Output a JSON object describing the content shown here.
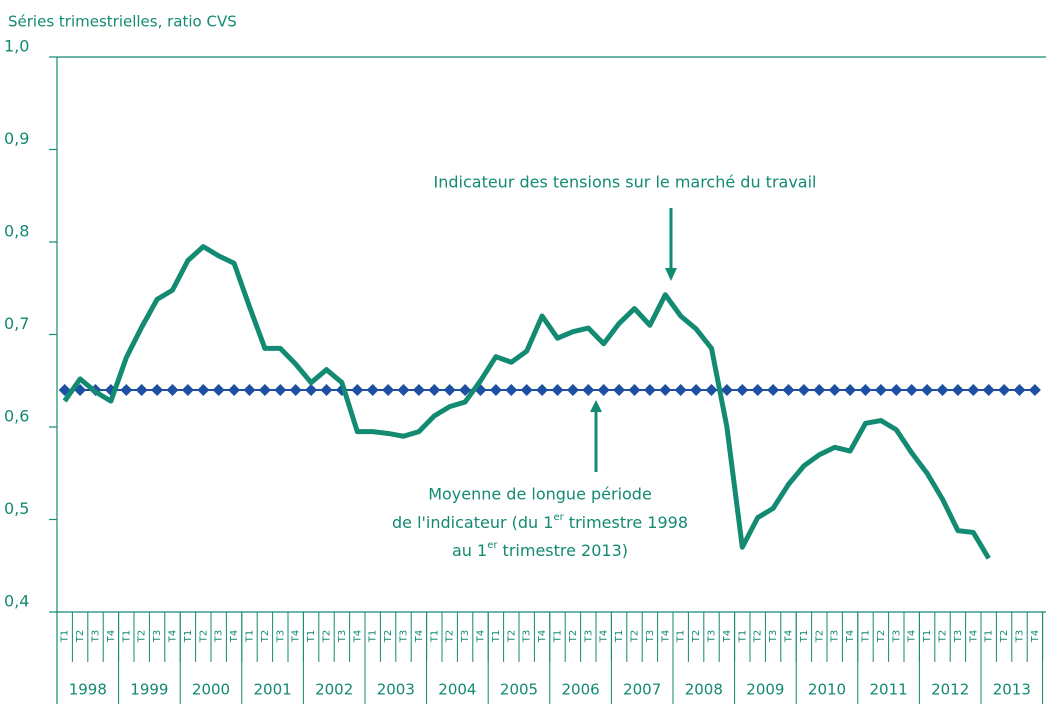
{
  "chart_data": {
    "type": "line",
    "subtitle": "Séries trimestrielles, ratio CVS",
    "categories": [
      "T1",
      "T2",
      "T3",
      "T4",
      "T1",
      "T2",
      "T3",
      "T4",
      "T1",
      "T2",
      "T3",
      "T4",
      "T1",
      "T2",
      "T3",
      "T4",
      "T1",
      "T2",
      "T3",
      "T4",
      "T1",
      "T2",
      "T3",
      "T4",
      "T1",
      "T2",
      "T3",
      "T4",
      "T1",
      "T2",
      "T3",
      "T4",
      "T1",
      "T2",
      "T3",
      "T4",
      "T1",
      "T2",
      "T3",
      "T4",
      "T1",
      "T2",
      "T3",
      "T4",
      "T1",
      "T2",
      "T3",
      "T4",
      "T1",
      "T2",
      "T3",
      "T4",
      "T1",
      "T2",
      "T3",
      "T4",
      "T1",
      "T2",
      "T3",
      "T4",
      "T1",
      "T2",
      "T3",
      "T4"
    ],
    "years": [
      "1998",
      "1999",
      "2000",
      "2001",
      "2002",
      "2003",
      "2004",
      "2005",
      "2006",
      "2007",
      "2008",
      "2009",
      "2010",
      "2011",
      "2012",
      "2013"
    ],
    "series": [
      {
        "color": "#138a72",
        "values": [
          0.628,
          0.652,
          0.638,
          0.628,
          0.675,
          0.708,
          0.738,
          0.748,
          0.78,
          0.795,
          0.785,
          0.777,
          0.73,
          0.685,
          0.685,
          0.668,
          0.648,
          0.662,
          0.648,
          0.595,
          0.595,
          0.593,
          0.59,
          0.595,
          0.612,
          0.622,
          0.627,
          0.65,
          0.676,
          0.67,
          0.682,
          0.72,
          0.696,
          0.703,
          0.707,
          0.69,
          0.712,
          0.728,
          0.71,
          0.743,
          0.72,
          0.706,
          0.685,
          0.6,
          0.47,
          0.502,
          0.512,
          0.538,
          0.558,
          0.57,
          0.578,
          0.574,
          0.604,
          0.607,
          0.597,
          0.572,
          0.55,
          0.522,
          0.488,
          0.486,
          0.458,
          null,
          null,
          null
        ]
      },
      {
        "color": "#1d4fa3",
        "marker": "diamond",
        "values": [
          0.64,
          0.64,
          0.64,
          0.64,
          0.64,
          0.64,
          0.64,
          0.64,
          0.64,
          0.64,
          0.64,
          0.64,
          0.64,
          0.64,
          0.64,
          0.64,
          0.64,
          0.64,
          0.64,
          0.64,
          0.64,
          0.64,
          0.64,
          0.64,
          0.64,
          0.64,
          0.64,
          0.64,
          0.64,
          0.64,
          0.64,
          0.64,
          0.64,
          0.64,
          0.64,
          0.64,
          0.64,
          0.64,
          0.64,
          0.64,
          0.64,
          0.64,
          0.64,
          0.64,
          0.64,
          0.64,
          0.64,
          0.64,
          0.64,
          0.64,
          0.64,
          0.64,
          0.64,
          0.64,
          0.64,
          0.64,
          0.64,
          0.64,
          0.64,
          0.64,
          0.64,
          0.64,
          0.64,
          0.64
        ]
      }
    ],
    "ylim": [
      0.4,
      1.0
    ],
    "yticks": [
      {
        "value": 0.4,
        "label": "0,4"
      },
      {
        "value": 0.5,
        "label": "0,5"
      },
      {
        "value": 0.6,
        "label": "0,6"
      },
      {
        "value": 0.7,
        "label": "0,7"
      },
      {
        "value": 0.8,
        "label": "0,8"
      },
      {
        "value": 0.9,
        "label": "0,9"
      },
      {
        "value": 1.0,
        "label": "1,0"
      }
    ],
    "annotation_indicator": "Indicateur des tensions sur le marché du travail",
    "annotation_mean": {
      "line1": "Moyenne de longue période",
      "line2": [
        "de l'indicateur (du 1",
        "er",
        " trimestre 1998"
      ],
      "line3": [
        "au 1",
        "er",
        " trimestre 2013)"
      ]
    }
  }
}
